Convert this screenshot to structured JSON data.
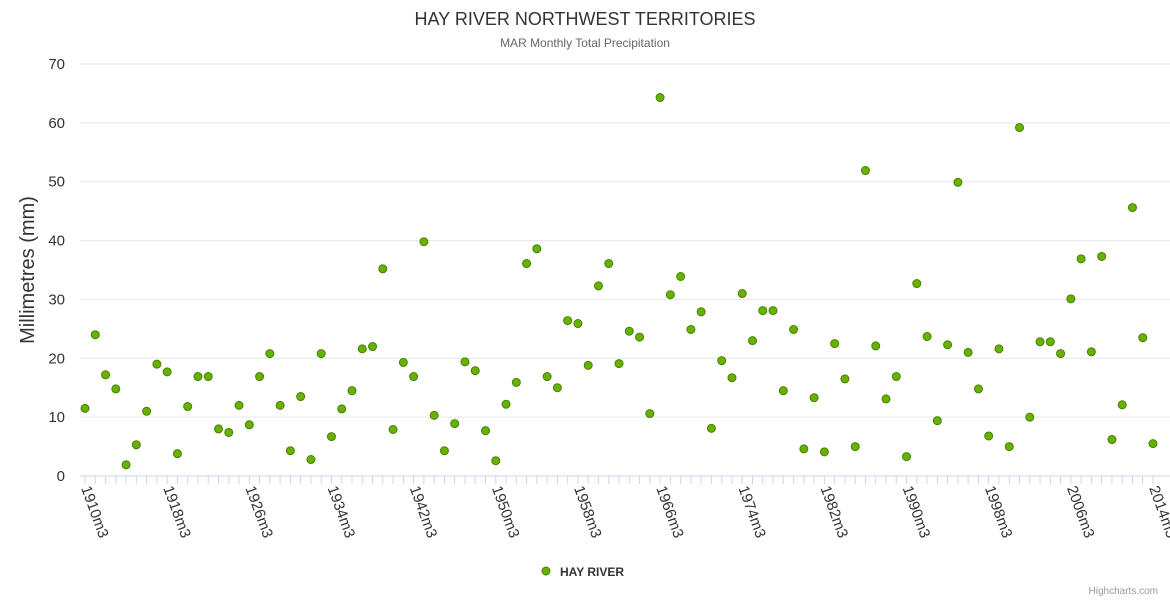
{
  "chart_data": {
    "type": "scatter",
    "title": "HAY RIVER NORTHWEST TERRITORIES",
    "subtitle": "MAR Monthly Total Precipitation",
    "xlabel": "",
    "ylabel": "Millimetres (mm)",
    "ylim": [
      0,
      70
    ],
    "yticks": [
      0,
      10,
      20,
      30,
      40,
      50,
      60,
      70
    ],
    "xlim": [
      1910,
      2014
    ],
    "xtick_labels": [
      "1910m3",
      "1918m3",
      "1926m3",
      "1934m3",
      "1942m3",
      "1950m3",
      "1958m3",
      "1966m3",
      "1974m3",
      "1982m3",
      "1990m3",
      "1998m3",
      "2006m3",
      "2014m3"
    ],
    "xtick_years": [
      1910,
      1918,
      1926,
      1934,
      1942,
      1950,
      1958,
      1966,
      1974,
      1982,
      1990,
      1998,
      2006,
      2014
    ],
    "grid": true,
    "legend_position": "bottom-center",
    "series": [
      {
        "name": "HAY RIVER",
        "color": "#66b200",
        "x": [
          1910,
          1911,
          1912,
          1913,
          1914,
          1915,
          1916,
          1917,
          1918,
          1919,
          1920,
          1921,
          1922,
          1923,
          1924,
          1925,
          1926,
          1927,
          1928,
          1929,
          1930,
          1931,
          1932,
          1933,
          1934,
          1935,
          1936,
          1937,
          1938,
          1939,
          1940,
          1941,
          1942,
          1943,
          1944,
          1945,
          1946,
          1947,
          1948,
          1949,
          1950,
          1951,
          1952,
          1953,
          1954,
          1955,
          1956,
          1957,
          1958,
          1959,
          1960,
          1961,
          1962,
          1963,
          1964,
          1965,
          1966,
          1967,
          1968,
          1969,
          1970,
          1971,
          1972,
          1973,
          1974,
          1975,
          1976,
          1977,
          1978,
          1979,
          1980,
          1981,
          1982,
          1983,
          1984,
          1985,
          1986,
          1987,
          1988,
          1989,
          1990,
          1991,
          1992,
          1993,
          1994,
          1995,
          1996,
          1997,
          1998,
          1999,
          2000,
          2001,
          2002,
          2003,
          2004,
          2005,
          2006,
          2007,
          2008,
          2009,
          2010,
          2011,
          2012,
          2013,
          2014
        ],
        "values": [
          11.5,
          24.0,
          17.2,
          14.8,
          1.9,
          5.3,
          11.0,
          19.0,
          17.7,
          3.8,
          11.8,
          16.9,
          16.9,
          8.0,
          7.4,
          12.0,
          8.7,
          16.9,
          20.8,
          12.0,
          4.3,
          13.5,
          2.8,
          20.8,
          6.7,
          11.4,
          14.5,
          21.6,
          22.0,
          35.2,
          7.9,
          19.3,
          16.9,
          39.8,
          10.3,
          4.3,
          8.9,
          19.4,
          17.9,
          7.7,
          2.6,
          12.2,
          15.9,
          36.1,
          38.6,
          16.9,
          15.0,
          26.4,
          25.9,
          18.8,
          32.3,
          36.1,
          19.1,
          24.6,
          23.6,
          10.6,
          64.3,
          30.8,
          33.9,
          24.9,
          27.9,
          8.1,
          19.6,
          16.7,
          31.0,
          23.0,
          28.1,
          28.1,
          14.5,
          24.9,
          4.6,
          13.3,
          4.1,
          22.5,
          16.5,
          5.0,
          51.9,
          22.1,
          13.1,
          16.9,
          3.3,
          32.7,
          23.7,
          9.4,
          22.3,
          49.9,
          21.0,
          14.8,
          6.8,
          21.6,
          5.0,
          59.2,
          10.0,
          22.8,
          22.8,
          20.8,
          30.1,
          36.9,
          21.1,
          37.3,
          6.2,
          12.1,
          45.6,
          23.5,
          5.5
        ]
      }
    ],
    "credits": "Highcharts.com"
  }
}
